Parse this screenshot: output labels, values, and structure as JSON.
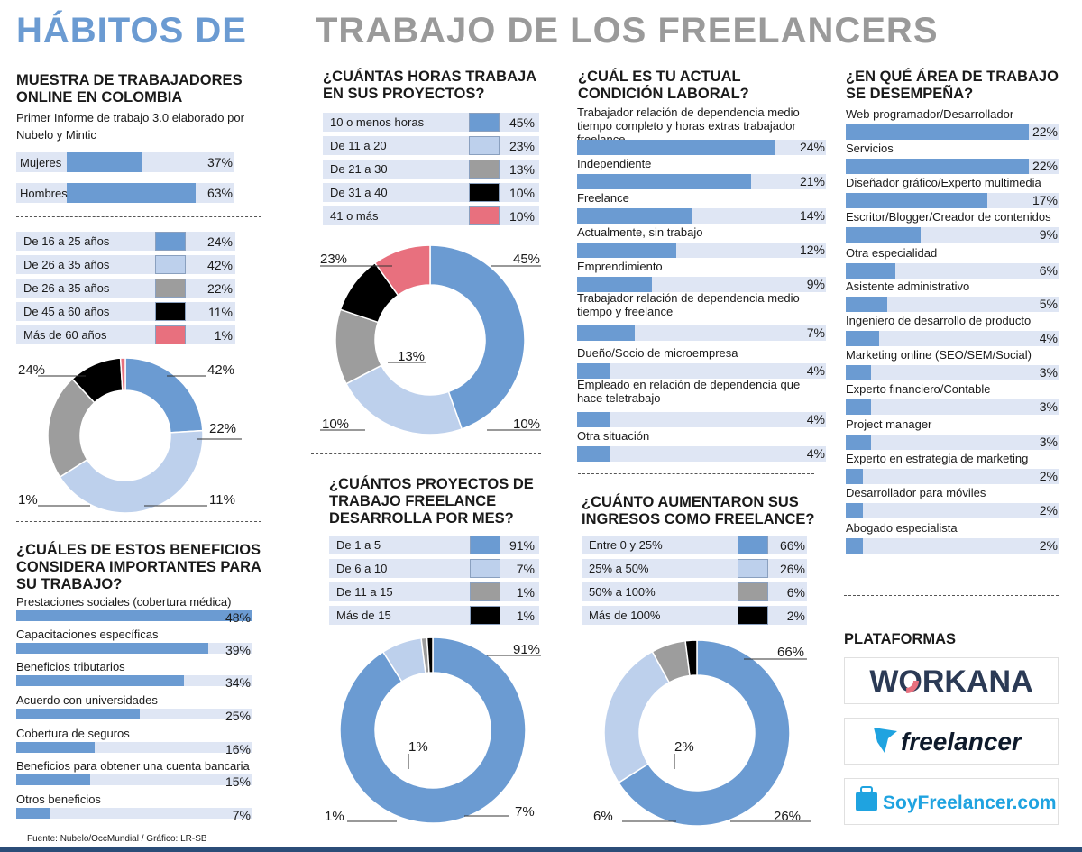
{
  "header": {
    "title_part1": "HÁBITOS DE",
    "title_part2": "TRABAJO DE LOS FREELANCERS"
  },
  "colors": {
    "blue": "#6b9bd2",
    "light_blue": "#bdd0ec",
    "gray": "#9d9d9d",
    "black": "#000000",
    "pink": "#e8707e",
    "bar_bg": "#dfe6f4"
  },
  "muestra": {
    "title": "MUESTRA DE TRABAJADORES ONLINE EN COLOMBIA",
    "subtitle": "Primer Informe de trabajo 3.0 elaborado por Nubelo y Mintic",
    "gender": [
      {
        "label": "Mujeres",
        "value": 37,
        "display": "37%"
      },
      {
        "label": "Hombres",
        "value": 63,
        "display": "63%"
      }
    ],
    "ages": [
      {
        "label": "De 16 a 25 años",
        "value": 24,
        "display": "24%",
        "color": "#6b9bd2"
      },
      {
        "label": "De 26 a 35 años",
        "value": 42,
        "display": "42%",
        "color": "#bdd0ec"
      },
      {
        "label": "De 26 a 35 años",
        "value": 22,
        "display": "22%",
        "color": "#9d9d9d"
      },
      {
        "label": "De 45 a 60 años",
        "value": 11,
        "display": "11%",
        "color": "#000000"
      },
      {
        "label": "Más de 60 años",
        "value": 1,
        "display": "1%",
        "color": "#e8707e"
      }
    ],
    "donut_labels": [
      "24%",
      "42%",
      "22%",
      "11%",
      "1%"
    ]
  },
  "horas": {
    "title": "¿CUÁNTAS HORAS TRABAJA EN SUS PROYECTOS?",
    "items": [
      {
        "label": "10 o menos horas",
        "value": 45,
        "display": "45%",
        "color": "#6b9bd2"
      },
      {
        "label": "De 11 a 20",
        "value": 23,
        "display": "23%",
        "color": "#bdd0ec"
      },
      {
        "label": "De 21 a 30",
        "value": 13,
        "display": "13%",
        "color": "#9d9d9d"
      },
      {
        "label": "De 31 a 40",
        "value": 10,
        "display": "10%",
        "color": "#000000"
      },
      {
        "label": "41 o más",
        "value": 10,
        "display": "10%",
        "color": "#e8707e"
      }
    ],
    "donut_labels": [
      "45%",
      "23%",
      "13%",
      "10%",
      "10%"
    ]
  },
  "condicion": {
    "title": "¿CUÁL ES TU ACTUAL CONDICIÓN LABORAL?",
    "items": [
      {
        "label": "Trabajador relación de dependencia medio tiempo completo y horas extras trabajador freelance",
        "value": 24,
        "display": "24%"
      },
      {
        "label": "Independiente",
        "value": 21,
        "display": "21%"
      },
      {
        "label": "Freelance",
        "value": 14,
        "display": "14%"
      },
      {
        "label": "Actualmente, sin trabajo",
        "value": 12,
        "display": "12%"
      },
      {
        "label": "Emprendimiento",
        "value": 9,
        "display": "9%"
      },
      {
        "label": "Trabajador relación de dependencia medio tiempo y freelance",
        "value": 7,
        "display": "7%"
      },
      {
        "label": "Dueño/Socio de microempresa",
        "value": 4,
        "display": "4%"
      },
      {
        "label": "Empleado en relación de dependencia que hace teletrabajo",
        "value": 4,
        "display": "4%"
      },
      {
        "label": "Otra situación",
        "value": 4,
        "display": "4%"
      }
    ]
  },
  "area": {
    "title": "¿EN QUÉ ÁREA DE TRABAJO SE DESEMPEÑA?",
    "items": [
      {
        "label": "Web programador/Desarrollador",
        "value": 22,
        "display": "22%"
      },
      {
        "label": "Servicios",
        "value": 22,
        "display": "22%"
      },
      {
        "label": "Diseñador gráfico/Experto multimedia",
        "value": 17,
        "display": "17%"
      },
      {
        "label": "Escritor/Blogger/Creador de contenidos",
        "value": 9,
        "display": "9%"
      },
      {
        "label": "Otra especialidad",
        "value": 6,
        "display": "6%"
      },
      {
        "label": "Asistente administrativo",
        "value": 5,
        "display": "5%"
      },
      {
        "label": "Ingeniero de desarrollo de producto",
        "value": 4,
        "display": "4%"
      },
      {
        "label": "Marketing online (SEO/SEM/Social)",
        "value": 3,
        "display": "3%"
      },
      {
        "label": "Experto financiero/Contable",
        "value": 3,
        "display": "3%"
      },
      {
        "label": "Project manager",
        "value": 3,
        "display": "3%"
      },
      {
        "label": "Experto en estrategia de marketing",
        "value": 2,
        "display": "2%"
      },
      {
        "label": "Desarrollador para móviles",
        "value": 2,
        "display": "2%"
      },
      {
        "label": "Abogado especialista",
        "value": 2,
        "display": "2%"
      }
    ]
  },
  "beneficios": {
    "title": "¿CUÁLES DE ESTOS BENEFICIOS CONSIDERA IMPORTANTES PARA SU TRABAJO?",
    "items": [
      {
        "label": "Prestaciones sociales (cobertura médica)",
        "value": 48,
        "display": "48%"
      },
      {
        "label": "Capacitaciones específicas",
        "value": 39,
        "display": "39%"
      },
      {
        "label": "Beneficios tributarios",
        "value": 34,
        "display": "34%"
      },
      {
        "label": "Acuerdo con universidades",
        "value": 25,
        "display": "25%"
      },
      {
        "label": "Cobertura de seguros",
        "value": 16,
        "display": "16%"
      },
      {
        "label": "Beneficios para obtener una cuenta bancaria",
        "value": 15,
        "display": "15%"
      },
      {
        "label": "Otros beneficios",
        "value": 7,
        "display": "7%"
      }
    ]
  },
  "proyectos": {
    "title": "¿CUÁNTOS PROYECTOS DE TRABAJO FREELANCE DESARROLLA POR MES?",
    "items": [
      {
        "label": "De 1 a 5",
        "value": 91,
        "display": "91%",
        "color": "#6b9bd2"
      },
      {
        "label": "De 6 a 10",
        "value": 7,
        "display": "7%",
        "color": "#bdd0ec"
      },
      {
        "label": "De 11 a 15",
        "value": 1,
        "display": "1%",
        "color": "#9d9d9d"
      },
      {
        "label": "Más de 15",
        "value": 1,
        "display": "1%",
        "color": "#000000"
      }
    ],
    "donut_labels": [
      "91%",
      "7%",
      "1%",
      "1%"
    ]
  },
  "ingresos": {
    "title": "¿CUÁNTO AUMENTARON SUS INGRESOS COMO FREELANCE?",
    "items": [
      {
        "label": "Entre 0 y 25%",
        "value": 66,
        "display": "66%",
        "color": "#6b9bd2"
      },
      {
        "label": "25% a 50%",
        "value": 26,
        "display": "26%",
        "color": "#bdd0ec"
      },
      {
        "label": "50% a 100%",
        "value": 6,
        "display": "6%",
        "color": "#9d9d9d"
      },
      {
        "label": "Más de 100%",
        "value": 2,
        "display": "2%",
        "color": "#000000"
      }
    ],
    "donut_labels": [
      "66%",
      "26%",
      "6%",
      "2%"
    ]
  },
  "plataformas": {
    "title": "PLATAFORMAS",
    "logos": [
      "WORKANA",
      "freelancer",
      "SoyFreelancer.com"
    ]
  },
  "footer": {
    "source": "Fuente: Nubelo/OccMundial / Gráfico: LR-SB"
  },
  "chart_data": [
    {
      "type": "bar",
      "title": "MUESTRA DE TRABAJADORES ONLINE EN COLOMBIA",
      "categories": [
        "Mujeres",
        "Hombres"
      ],
      "values": [
        37,
        63
      ]
    },
    {
      "type": "pie",
      "categories": [
        "De 16 a 25 años",
        "De 26 a 35 años",
        "De 26 a 35 años",
        "De 45 a 60 años",
        "Más de 60 años"
      ],
      "values": [
        24,
        42,
        22,
        11,
        1
      ]
    },
    {
      "type": "pie",
      "title": "¿CUÁNTAS HORAS TRABAJA EN SUS PROYECTOS?",
      "categories": [
        "10 o menos horas",
        "De 11 a 20",
        "De 21 a 30",
        "De 31 a 40",
        "41 o más"
      ],
      "values": [
        45,
        23,
        13,
        10,
        10
      ]
    },
    {
      "type": "bar",
      "title": "¿CUÁL ES TU ACTUAL CONDICIÓN LABORAL?",
      "categories": [
        "Trabajador relación de dependencia medio tiempo completo y horas extras trabajador freelance",
        "Independiente",
        "Freelance",
        "Actualmente, sin trabajo",
        "Emprendimiento",
        "Trabajador relación de dependencia medio tiempo y freelance",
        "Dueño/Socio de microempresa",
        "Empleado en relación de dependencia que hace teletrabajo",
        "Otra situación"
      ],
      "values": [
        24,
        21,
        14,
        12,
        9,
        7,
        4,
        4,
        4
      ]
    },
    {
      "type": "bar",
      "title": "¿EN QUÉ ÁREA DE TRABAJO SE DESEMPEÑA?",
      "categories": [
        "Web programador/Desarrollador",
        "Servicios",
        "Diseñador gráfico/Experto multimedia",
        "Escritor/Blogger/Creador de contenidos",
        "Otra especialidad",
        "Asistente administrativo",
        "Ingeniero de desarrollo de producto",
        "Marketing online (SEO/SEM/Social)",
        "Experto financiero/Contable",
        "Project manager",
        "Experto en estrategia de marketing",
        "Desarrollador para móviles",
        "Abogado especialista"
      ],
      "values": [
        22,
        22,
        17,
        9,
        6,
        5,
        4,
        3,
        3,
        3,
        2,
        2,
        2
      ]
    },
    {
      "type": "bar",
      "title": "¿CUÁLES DE ESTOS BENEFICIOS CONSIDERA IMPORTANTES PARA SU TRABAJO?",
      "categories": [
        "Prestaciones sociales (cobertura médica)",
        "Capacitaciones específicas",
        "Beneficios tributarios",
        "Acuerdo con universidades",
        "Cobertura de seguros",
        "Beneficios para obtener una cuenta bancaria",
        "Otros beneficios"
      ],
      "values": [
        48,
        39,
        34,
        25,
        16,
        15,
        7
      ]
    },
    {
      "type": "pie",
      "title": "¿CUÁNTOS PROYECTOS DE TRABAJO FREELANCE DESARROLLA POR MES?",
      "categories": [
        "De 1 a 5",
        "De 6 a 10",
        "De 11 a 15",
        "Más de 15"
      ],
      "values": [
        91,
        7,
        1,
        1
      ]
    },
    {
      "type": "pie",
      "title": "¿CUÁNTO AUMENTARON SUS INGRESOS COMO FREELANCE?",
      "categories": [
        "Entre 0 y 25%",
        "25% a 50%",
        "50% a 100%",
        "Más de 100%"
      ],
      "values": [
        66,
        26,
        6,
        2
      ]
    }
  ]
}
